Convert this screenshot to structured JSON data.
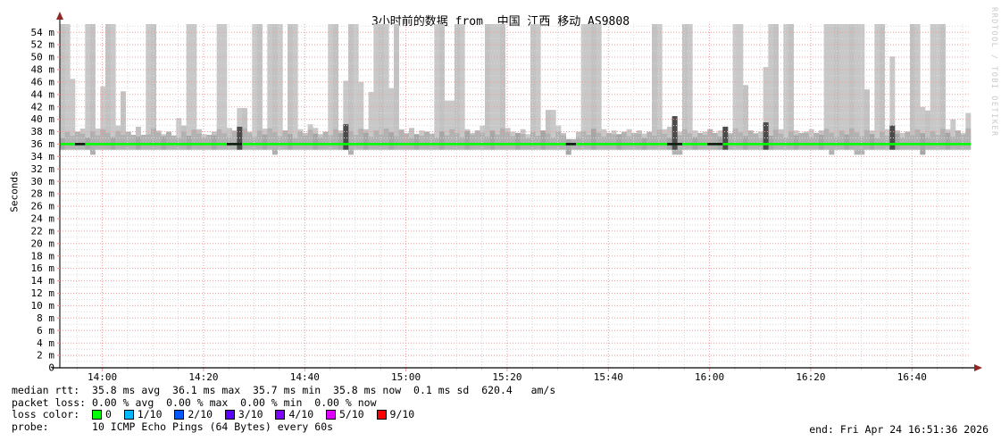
{
  "title": "3小时前的数据 from  中国 江西 移动 AS9808",
  "watermark": "RRDTOOL / TOBI OETIKER",
  "legend": {
    "median_rtt_prefix": "median rtt:  ",
    "median_rtt_values": "35.8 ms avg  36.1 ms max  35.7 ms min  35.8 ms now  0.1 ms sd  620.4   am/s",
    "packet_loss_prefix": "packet loss: ",
    "packet_loss_values": "0.00 % avg  0.00 % max  0.00 % min  0.00 % now",
    "loss_color_prefix": "loss color:  ",
    "loss_colors": [
      {
        "label": "0",
        "color": "#00ff00"
      },
      {
        "label": "1/10",
        "color": "#00b8ff"
      },
      {
        "label": "2/10",
        "color": "#0059ff"
      },
      {
        "label": "3/10",
        "color": "#5e00ff"
      },
      {
        "label": "4/10",
        "color": "#7e00ff"
      },
      {
        "label": "5/10",
        "color": "#dd00ff"
      },
      {
        "label": "9/10",
        "color": "#ff0000"
      }
    ],
    "probe_prefix": "probe:       ",
    "probe_text": "10 ICMP Echo Pings (64 Bytes) every 60s",
    "end_text": "end: Fri Apr 24 16:51:36 2026"
  },
  "chart_data": {
    "type": "area",
    "subtype": "smokeping-latency",
    "title": "3小时前的数据 from  中国 江西 移动 AS9808",
    "ylabel": "Seconds",
    "ylim_ms": [
      0,
      55.3
    ],
    "y_tick_step_ms": 2,
    "y_tick_max_ms": 54,
    "x_start_label": "13:51:36",
    "x_end_label": "16:51:36",
    "x_ticks": [
      "14:00",
      "14:20",
      "14:40",
      "15:00",
      "15:20",
      "15:40",
      "16:00",
      "16:20",
      "16:40"
    ],
    "x_major_grid_min": 20,
    "x_minor_grid_min": 5,
    "minutes_total": 180,
    "first_tick_offset_min": 8.4,
    "first_minor_offset_min": 3.4,
    "median_ms": 36.0,
    "smoke_base_ms": 35.1,
    "smoke_low_ms": 34.3,
    "stats": {
      "median_avg_ms": 35.8,
      "median_max_ms": 36.1,
      "median_min_ms": 35.7,
      "median_now_ms": 35.8,
      "sd_ms": 0.1,
      "rate": 620.4,
      "rate_unit": "am/s",
      "loss_avg_pct": 0.0,
      "loss_max_pct": 0.0,
      "loss_min_pct": 0.0,
      "loss_now_pct": 0.0
    },
    "smoke_max_ms": [
      55.5,
      55.5,
      46.5,
      38,
      38.5,
      55.5,
      55.5,
      38.5,
      45.3,
      55.5,
      55.5,
      39,
      44.5,
      38,
      37.5,
      38.8,
      37.5,
      55.5,
      55.5,
      38.2,
      37.6,
      38,
      37.4,
      40.2,
      39,
      55.5,
      55.5,
      38.4,
      37.6,
      37.5,
      38,
      55.5,
      55.5,
      38.6,
      38.2,
      41.8,
      41.8,
      38,
      55.5,
      55.5,
      38.5,
      55.5,
      55.5,
      55.5,
      38.2,
      55.5,
      55.5,
      38.4,
      37.8,
      39.2,
      38.6,
      37.6,
      38,
      55.5,
      55.5,
      38.2,
      46.2,
      55.5,
      55.5,
      46,
      38.4,
      44.4,
      55.5,
      55.5,
      55.5,
      45,
      55.5,
      38.4,
      37.8,
      38.6,
      37.6,
      38.2,
      38,
      37.7,
      55.5,
      55.5,
      43,
      43,
      55.5,
      55.5,
      38.4,
      37.8,
      38.2,
      39,
      55.5,
      55.5,
      55.5,
      55.5,
      38.6,
      38,
      37.8,
      38.4,
      37.6,
      55.5,
      55.5,
      38.2,
      41.5,
      41.5,
      39,
      37.8,
      36.8,
      36.8,
      38,
      55.5,
      55.5,
      55.5,
      55.5,
      38.4,
      37.8,
      38.2,
      37.6,
      38,
      38.4,
      37.8,
      38.2,
      37.7,
      38,
      55.5,
      55.5,
      38.4,
      38.8,
      40.5,
      38,
      55.5,
      55.5,
      38.2,
      37.8,
      38,
      38.4,
      37.8,
      38.2,
      38.8,
      37.8,
      55.5,
      55.5,
      45.5,
      38.2,
      37.8,
      38,
      48.4,
      55.5,
      55.5,
      38.4,
      55.5,
      55.5,
      38.2,
      37.8,
      38,
      38.4,
      37.8,
      38.2,
      55.5,
      55.5,
      55.5,
      55.5,
      55.5,
      55.5,
      55.5,
      55.5,
      44.8,
      38.2,
      55.5,
      55.5,
      38.4,
      50.1,
      38.2,
      37.8,
      38,
      55.5,
      55.5,
      42,
      41.4,
      55.5,
      55.5,
      55.5,
      38.4,
      40,
      38.2,
      37.8,
      41
    ],
    "low_minutes": [
      6,
      42,
      57,
      100,
      121,
      122,
      152,
      157,
      158,
      170
    ],
    "dark_spikes": [
      {
        "i": 121,
        "v": 40.5
      },
      {
        "i": 35,
        "v": 38.8
      },
      {
        "i": 56,
        "v": 39.2
      },
      {
        "i": 131,
        "v": 38.8
      },
      {
        "i": 139,
        "v": 39.5
      },
      {
        "i": 164,
        "v": 39
      }
    ],
    "black_median_segments": [
      [
        3,
        4
      ],
      [
        33,
        35
      ],
      [
        100,
        101
      ],
      [
        120,
        122
      ],
      [
        128,
        130
      ]
    ],
    "colors": {
      "smoke": "#c8c8c8",
      "smoke_alt": "#c2c2c2",
      "smoke_mid": "#a4a4a4",
      "smoke_dark": "#4b4b4b",
      "median": "#00ff00",
      "median_dark": "#151515",
      "grid_major": "#f29a9a",
      "grid_minor": "#d9d9d9",
      "axis": "#222222",
      "arrow": "#8f2727"
    },
    "legend_position": "bottom",
    "grid": true
  }
}
